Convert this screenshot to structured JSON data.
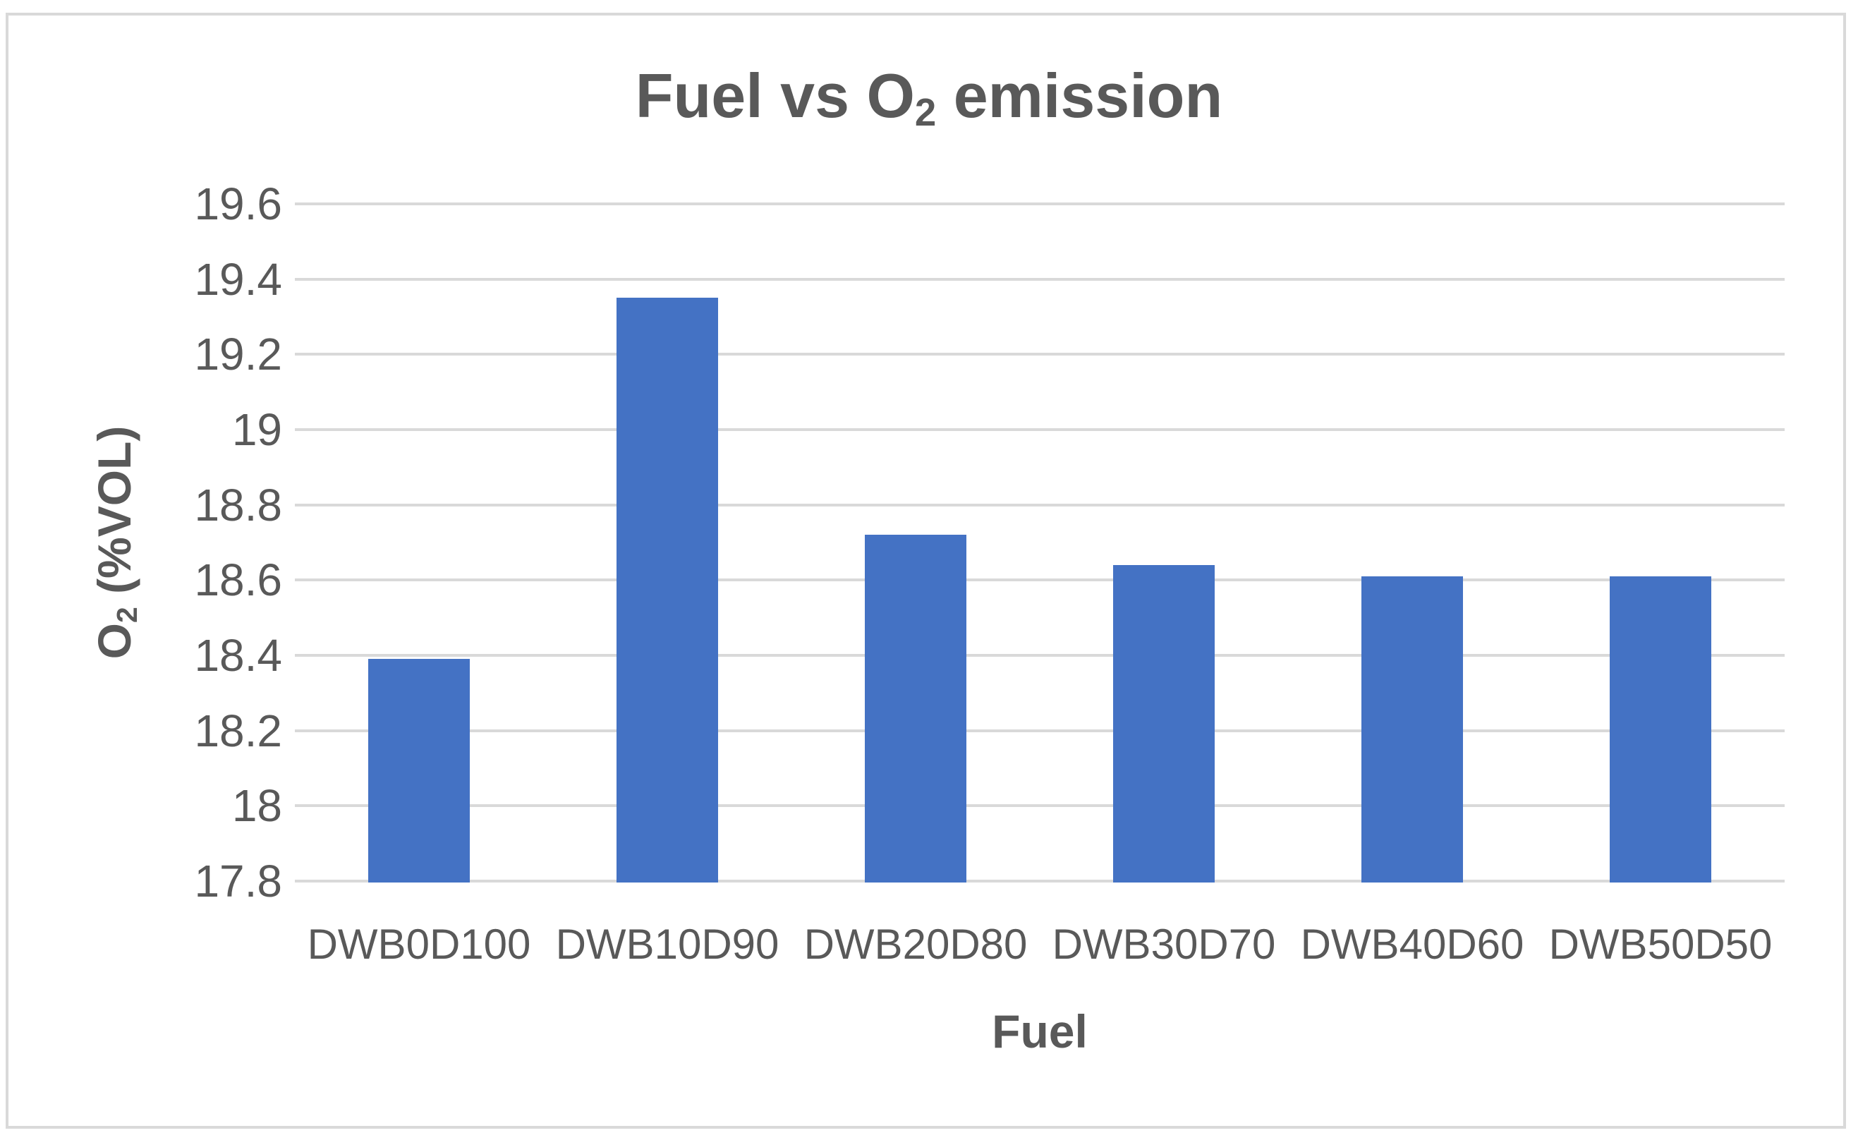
{
  "chart_data": {
    "type": "bar",
    "title_parts": {
      "pre": "Fuel vs O",
      "sub": "2",
      "post": " emission"
    },
    "categories": [
      "DWB0D100",
      "DWB10D90",
      "DWB20D80",
      "DWB30D70",
      "DWB40D60",
      "DWB50D50"
    ],
    "values": [
      18.39,
      19.35,
      18.72,
      18.64,
      18.61,
      18.61
    ],
    "xlabel": "Fuel",
    "ylabel_parts": {
      "pre": "O",
      "sub": "2",
      "post": " (%VOL)"
    },
    "ylim": [
      17.8,
      19.6
    ],
    "ytick_step": 0.2,
    "ytick_labels": [
      "19.6",
      "19.4",
      "19.2",
      "19",
      "18.8",
      "18.6",
      "18.4",
      "18.2",
      "18",
      "17.8"
    ],
    "grid": true,
    "legend": "none",
    "colors": {
      "bar": "#4472C4",
      "gridline": "#D9D9D9",
      "text": "#595959",
      "border": "#D9D9D9",
      "background": "#FFFFFF"
    }
  }
}
